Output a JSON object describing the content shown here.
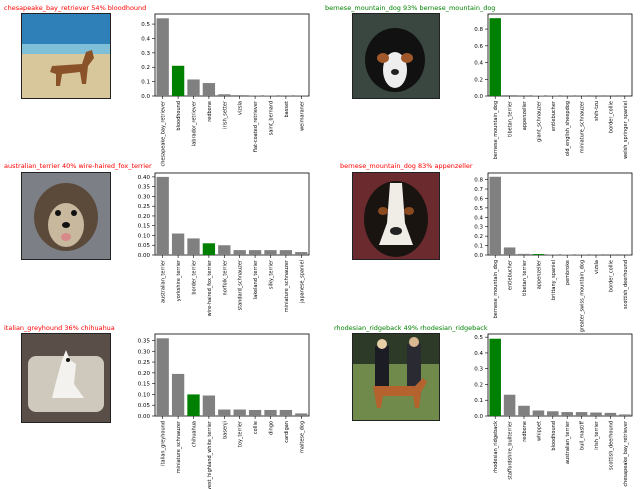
{
  "colors": {
    "wrong": "#ff0000",
    "correct": "#008000",
    "bar_default": "#808080",
    "bar_correct": "#008000"
  },
  "panels": [
    {
      "caption": "chesapeake_bay_retriever 54% bloodhound",
      "caption_color": "#ff0000",
      "photo": "dog-on-beach-image",
      "chart_data": {
        "type": "bar",
        "categories": [
          "chesapeake_bay_retriever",
          "bloodhound",
          "labrador_retriever",
          "redbone",
          "irish_setter",
          "vizsla",
          "flat-coated_retriever",
          "saint_bernard",
          "basset",
          "weimaraner"
        ],
        "values": [
          0.54,
          0.21,
          0.115,
          0.09,
          0.012,
          0.006,
          0.004,
          0.003,
          0.002,
          0.002
        ],
        "highlight": "bloodhound",
        "ylim": [
          0,
          0.57
        ],
        "yticks": [
          0.0,
          0.1,
          0.2,
          0.3,
          0.4,
          0.5
        ],
        "ytick_labels": [
          "0.0",
          "0.1",
          "0.2",
          "0.3",
          "0.4",
          "0.5"
        ]
      }
    },
    {
      "caption": "bernese_mountain_dog 93% bernese_mountain_dog",
      "caption_color": "#008000",
      "photo": "bernese-puppy-image",
      "chart_data": {
        "type": "bar",
        "categories": [
          "bernese_mountain_dog",
          "tibetan_terrier",
          "appenzeller",
          "giant_schnauzer",
          "entlebucher",
          "old_english_sheepdog",
          "miniature_schnauzer",
          "shih-tzu",
          "border_collie",
          "welsh_springer_spaniel"
        ],
        "values": [
          0.93,
          0.01,
          0.008,
          0.006,
          0.005,
          0.004,
          0.003,
          0.002,
          0.002,
          0.001
        ],
        "highlight": "bernese_mountain_dog",
        "ylim": [
          0,
          0.98
        ],
        "yticks": [
          0.0,
          0.2,
          0.4,
          0.6,
          0.8
        ],
        "ytick_labels": [
          "0.0",
          "0.2",
          "0.4",
          "0.6",
          "0.8"
        ]
      }
    },
    {
      "caption": "australian_terrier 40% wire-haired_fox_terrier",
      "caption_color": "#ff0000",
      "photo": "terrier-face-image",
      "chart_data": {
        "type": "bar",
        "categories": [
          "australian_terrier",
          "yorkshire_terrier",
          "border_terrier",
          "wire-haired_fox_terrier",
          "norfolk_terrier",
          "standard_schnauzer",
          "lakeland_terrier",
          "silky_terrier",
          "miniature_schnauzer",
          "japanese_spaniel"
        ],
        "values": [
          0.4,
          0.11,
          0.085,
          0.06,
          0.05,
          0.025,
          0.025,
          0.025,
          0.025,
          0.015
        ],
        "highlight": "wire-haired_fox_terrier",
        "ylim": [
          0,
          0.42
        ],
        "yticks": [
          0.0,
          0.05,
          0.1,
          0.15,
          0.2,
          0.25,
          0.3,
          0.35,
          0.4
        ],
        "ytick_labels": [
          "0.00",
          "0.05",
          "0.10",
          "0.15",
          "0.20",
          "0.25",
          "0.30",
          "0.35",
          "0.40"
        ]
      }
    },
    {
      "caption": "bernese_mountain_dog 83% appenzeller",
      "caption_color": "#ff0000",
      "photo": "bernese-portrait-image",
      "chart_data": {
        "type": "bar",
        "categories": [
          "bernese_mountain_dog",
          "entlebucher",
          "tibetan_terrier",
          "appenzeller",
          "brittany_spaniel",
          "pembroke",
          "greater_swiss_mountain_dog",
          "vizsla",
          "border_collie",
          "scottish_deerhound"
        ],
        "values": [
          0.83,
          0.08,
          0.012,
          0.01,
          0.006,
          0.005,
          0.004,
          0.003,
          0.002,
          0.002
        ],
        "highlight": "appenzeller",
        "ylim": [
          0,
          0.87
        ],
        "yticks": [
          0.0,
          0.1,
          0.2,
          0.3,
          0.4,
          0.5,
          0.6,
          0.7,
          0.8
        ],
        "ytick_labels": [
          "0.0",
          "0.1",
          "0.2",
          "0.3",
          "0.4",
          "0.5",
          "0.6",
          "0.7",
          "0.8"
        ]
      }
    },
    {
      "caption": "italian_greyhound 36% chihuahua",
      "caption_color": "#ff0000",
      "photo": "dog-on-couch-image",
      "chart_data": {
        "type": "bar",
        "categories": [
          "italian_greyhound",
          "miniature_schnauzer",
          "chihuahua",
          "west_highland_white_terrier",
          "basenji",
          "toy_terrier",
          "collie",
          "dingo",
          "cardigan",
          "maltese_dog"
        ],
        "values": [
          0.36,
          0.195,
          0.1,
          0.095,
          0.03,
          0.03,
          0.028,
          0.028,
          0.028,
          0.012
        ],
        "highlight": "chihuahua",
        "ylim": [
          0,
          0.38
        ],
        "yticks": [
          0.0,
          0.05,
          0.1,
          0.15,
          0.2,
          0.25,
          0.3,
          0.35
        ],
        "ytick_labels": [
          "0.00",
          "0.05",
          "0.10",
          "0.15",
          "0.20",
          "0.25",
          "0.30",
          "0.35"
        ]
      }
    },
    {
      "caption": "rhodesian_ridgeback 49% rhodesian_ridgeback",
      "caption_color": "#008000",
      "photo": "dog-show-image",
      "chart_data": {
        "type": "bar",
        "categories": [
          "rhodesian_ridgeback",
          "staffordshire_bullterrier",
          "redbone",
          "whippet",
          "bloodhound",
          "australian_terrier",
          "bull_mastiff",
          "irish_terrier",
          "scottish_deerhound",
          "chesapeake_bay_retriever"
        ],
        "values": [
          0.49,
          0.135,
          0.065,
          0.035,
          0.03,
          0.025,
          0.025,
          0.022,
          0.02,
          0.01
        ],
        "highlight": "rhodesian_ridgeback",
        "ylim": [
          0,
          0.52
        ],
        "yticks": [
          0.0,
          0.1,
          0.2,
          0.3,
          0.4,
          0.5
        ],
        "ytick_labels": [
          "0.0",
          "0.1",
          "0.2",
          "0.3",
          "0.4",
          "0.5"
        ]
      }
    }
  ]
}
